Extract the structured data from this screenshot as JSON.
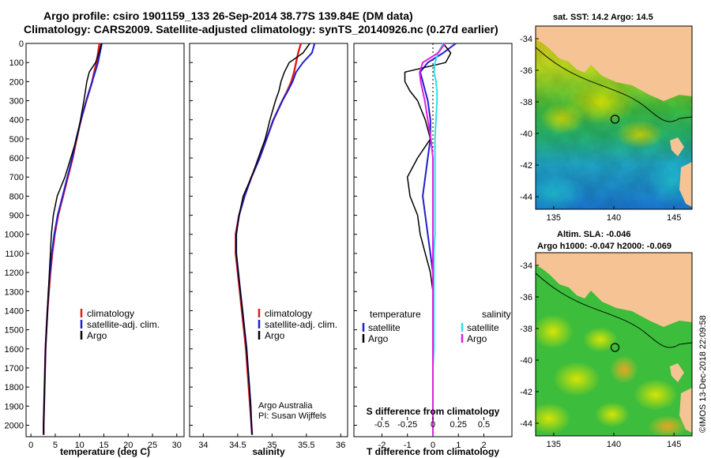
{
  "figure": {
    "title_line1": "Argo profile: csiro 1901159_133 26-Sep-2014 38.77S 139.84E (DM data)",
    "title_line2": "Climatology: CARS2009. Satellite-adjusted climatology: synTS_20140926.nc (0.27d earlier)",
    "credit": "©IMOS 13-Dec-2018 22:09:58",
    "argo_credit_line1": "Argo Australia",
    "argo_credit_line2": "PI: Susan Wijffels"
  },
  "colors": {
    "climatology": "#e41a1c",
    "satellite": "#1f1fd0",
    "argo": "#000000",
    "s_satellite": "#33dde8",
    "s_argo": "#e020e0"
  },
  "depth_ticks": [
    0,
    100,
    200,
    300,
    400,
    500,
    600,
    700,
    800,
    900,
    1000,
    1100,
    1200,
    1300,
    1400,
    1500,
    1600,
    1700,
    1800,
    1900,
    2000
  ],
  "legend": {
    "climatology": "climatology",
    "satellite": "satellite-adj. clim.",
    "argo": "Argo",
    "diff_temperature": "temperature",
    "diff_salinity": "salinity",
    "diff_satellite": "satellite",
    "diff_argo": "Argo"
  },
  "maps": {
    "sst_title": "sat. SST: 14.2 Argo: 14.5",
    "sla_title_line1": "Altim. SLA: -0.046",
    "sla_title_line2": "Argo h1000: -0.047 h2000: -0.069",
    "lon_ticks": [
      "135",
      "140",
      "145"
    ],
    "lat_ticks": [
      "-34",
      "-36",
      "-38",
      "-40",
      "-42",
      "-44"
    ],
    "lon_range": [
      133.5,
      146.5
    ],
    "lat_range": [
      -33.2,
      -44.8
    ],
    "profile_location": {
      "lon": 139.84,
      "lat": -38.77
    }
  },
  "chart_data": [
    {
      "type": "line",
      "id": "temperature",
      "title": "",
      "xlabel": "temperature (deg C)",
      "ylabel": "",
      "xlim": [
        -1,
        31.5
      ],
      "ylim": [
        2060,
        0
      ],
      "x_ticks": [
        0,
        5,
        10,
        15,
        20,
        25,
        30
      ],
      "y": [
        0,
        50,
        100,
        150,
        200,
        250,
        300,
        400,
        500,
        600,
        700,
        800,
        900,
        1000,
        1100,
        1200,
        1300,
        1400,
        1500,
        1600,
        1700,
        1800,
        1900,
        2000,
        2050
      ],
      "series": [
        {
          "name": "climatology",
          "x": [
            14.1,
            13.8,
            13.5,
            13.0,
            12.6,
            12.0,
            11.4,
            10.3,
            9.4,
            8.6,
            7.6,
            6.6,
            5.6,
            4.9,
            4.4,
            4.0,
            3.7,
            3.4,
            3.2,
            3.0,
            2.9,
            2.8,
            2.7,
            2.6,
            2.6
          ]
        },
        {
          "name": "satellite-adj. clim.",
          "x": [
            14.6,
            14.2,
            13.8,
            13.2,
            12.6,
            12.0,
            11.4,
            10.3,
            9.3,
            8.5,
            7.5,
            6.5,
            5.5,
            4.8,
            4.3,
            3.9,
            3.6,
            3.4,
            3.2,
            3.0,
            2.9,
            2.8,
            2.7,
            2.6,
            2.6
          ]
        },
        {
          "name": "Argo",
          "x": [
            14.5,
            14.0,
            13.3,
            12.0,
            11.5,
            11.2,
            10.9,
            10.2,
            9.4,
            8.2,
            7.0,
            5.4,
            4.6,
            4.2,
            4.0,
            3.8,
            3.6,
            3.4,
            3.2,
            3.0,
            2.9,
            2.8,
            2.7,
            2.6,
            2.6
          ]
        }
      ]
    },
    {
      "type": "line",
      "id": "salinity",
      "title": "",
      "xlabel": "salinity",
      "ylabel": "",
      "xlim": [
        33.8,
        36.1
      ],
      "ylim": [
        2060,
        0
      ],
      "x_ticks": [
        34,
        34.5,
        35,
        35.5,
        36
      ],
      "y": [
        0,
        50,
        100,
        150,
        200,
        250,
        300,
        400,
        500,
        600,
        700,
        800,
        900,
        1000,
        1100,
        1200,
        1300,
        1400,
        1500,
        1600,
        1700,
        1800,
        1900,
        2000,
        2050
      ],
      "series": [
        {
          "name": "climatology",
          "x": [
            35.42,
            35.38,
            35.35,
            35.32,
            35.28,
            35.22,
            35.15,
            35.02,
            34.92,
            34.82,
            34.7,
            34.6,
            34.52,
            34.47,
            34.47,
            34.5,
            34.53,
            34.56,
            34.59,
            34.62,
            34.64,
            34.66,
            34.68,
            34.7,
            34.71
          ]
        },
        {
          "name": "satellite-adj. clim.",
          "x": [
            35.62,
            35.58,
            35.45,
            35.35,
            35.3,
            35.23,
            35.15,
            35.02,
            34.92,
            34.82,
            34.7,
            34.6,
            34.52,
            34.48,
            34.48,
            34.51,
            34.54,
            34.57,
            34.6,
            34.63,
            34.65,
            34.67,
            34.69,
            34.7,
            34.71
          ]
        },
        {
          "name": "Argo",
          "x": [
            35.55,
            35.45,
            35.25,
            35.18,
            35.13,
            35.1,
            35.05,
            34.97,
            34.9,
            34.8,
            34.7,
            34.58,
            34.52,
            34.48,
            34.48,
            34.51,
            34.54,
            34.57,
            34.6,
            34.63,
            34.65,
            34.67,
            34.69,
            34.7,
            34.71
          ]
        }
      ]
    },
    {
      "type": "line",
      "id": "difference",
      "title": "S difference from climatology",
      "xlabel": "T difference from climatology",
      "ylabel": "",
      "xlim": [
        -3.1,
        3.1
      ],
      "ylim": [
        2060,
        0
      ],
      "x_ticks": [
        -2,
        -1,
        0,
        1,
        2
      ],
      "x_ticks_secondary": [
        "-0.5",
        "-0.25",
        "0",
        "0.25",
        "0.5"
      ],
      "y": [
        0,
        50,
        100,
        150,
        200,
        250,
        300,
        400,
        500,
        600,
        700,
        800,
        900,
        1000,
        1100,
        1200,
        1300,
        1400,
        1500,
        1600,
        1700,
        1800,
        1900,
        2000,
        2050
      ],
      "series": [
        {
          "name": "temperature satellite",
          "x": [
            0.9,
            0.4,
            -0.2,
            -0.5,
            -0.4,
            -0.3,
            -0.2,
            -0.1,
            -0.1,
            -0.2,
            -0.3,
            -0.4,
            -0.3,
            -0.2,
            -0.1,
            0.0,
            0.0,
            0.0,
            0.0,
            0.0,
            0.0,
            0.0,
            0.0,
            0.0,
            0.0
          ]
        },
        {
          "name": "temperature Argo",
          "x": [
            0.4,
            0.7,
            0.5,
            -1.1,
            -1.1,
            -0.9,
            -0.6,
            -0.3,
            -0.1,
            -0.6,
            -1.0,
            -0.9,
            -0.6,
            -0.5,
            -0.3,
            -0.1,
            0.0,
            0.0,
            0.0,
            0.0,
            0.0,
            0.0,
            0.0,
            0.0,
            0.0
          ]
        },
        {
          "name": "salinity satellite",
          "x": [
            0.1,
            0.05,
            0.02,
            0.01,
            0.03,
            0.04,
            0.04,
            0.03,
            0.02,
            0.02,
            0.02,
            0.02,
            0.02,
            0.02,
            0.01,
            0.01,
            0.01,
            0.01,
            0.01,
            0.01,
            0.0,
            0.0,
            0.0,
            0.0,
            0.0
          ]
        },
        {
          "name": "salinity Argo",
          "x": [
            0.12,
            0.05,
            -0.1,
            -0.13,
            -0.12,
            -0.1,
            -0.08,
            -0.05,
            -0.02,
            0.0,
            0.0,
            0.0,
            0.0,
            0.0,
            0.0,
            0.0,
            0.0,
            0.0,
            0.0,
            0.0,
            0.0,
            0.0,
            0.0,
            0.0,
            0.0
          ]
        }
      ]
    },
    {
      "type": "heatmap",
      "id": "sst_map",
      "title": "sat. SST: 14.2 Argo: 14.5",
      "xlim": [
        133.5,
        146.5
      ],
      "ylim": [
        -44.8,
        -33.2
      ],
      "x_ticks": [
        135,
        140,
        145
      ],
      "y_ticks": [
        -34,
        -36,
        -38,
        -40,
        -42,
        -44
      ],
      "marker": {
        "lon": 139.84,
        "lat": -38.77
      }
    },
    {
      "type": "heatmap",
      "id": "sla_map",
      "title": "Altim. SLA: -0.046",
      "xlim": [
        133.5,
        146.5
      ],
      "ylim": [
        -44.8,
        -33.2
      ],
      "x_ticks": [
        135,
        140,
        145
      ],
      "y_ticks": [
        -34,
        -36,
        -38,
        -40,
        -42,
        -44
      ],
      "marker": {
        "lon": 139.84,
        "lat": -38.77
      }
    }
  ]
}
